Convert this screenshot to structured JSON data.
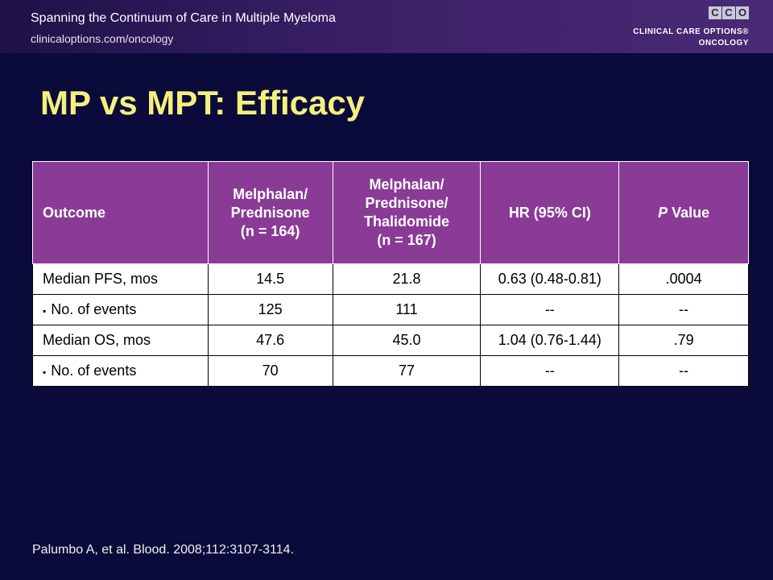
{
  "header": {
    "title": "Spanning the Continuum of Care in Multiple Myeloma",
    "url": "clinicaloptions.com/oncology",
    "logo": {
      "boxes": [
        "C",
        "C",
        "O"
      ],
      "line1": "CLINICAL CARE OPTIONS®",
      "line2": "ONCOLOGY"
    }
  },
  "slide": {
    "title": "MP vs MPT: Efficacy"
  },
  "table": {
    "headers": [
      {
        "key": "outcome",
        "lines": [
          "Outcome"
        ]
      },
      {
        "key": "mp",
        "lines": [
          "Melphalan/",
          "Prednisone",
          "(n = 164)"
        ]
      },
      {
        "key": "mpt",
        "lines": [
          "Melphalan/",
          "Prednisone/",
          "Thalidomide",
          "(n = 167)"
        ]
      },
      {
        "key": "hr",
        "lines": [
          "HR (95% CI)"
        ]
      },
      {
        "key": "p",
        "italic": "P",
        "rest": " Value"
      }
    ],
    "rows": [
      {
        "outcome": "Median PFS, mos",
        "sub": false,
        "mp": "14.5",
        "mpt": "21.8",
        "hr": "0.63 (0.48-0.81)",
        "p": ".0004"
      },
      {
        "outcome": "No. of events",
        "sub": true,
        "mp": "125",
        "mpt": "111",
        "hr": "--",
        "p": "--"
      },
      {
        "outcome": "Median OS, mos",
        "sub": false,
        "mp": "47.6",
        "mpt": "45.0",
        "hr": "1.04 (0.76-1.44)",
        "p": ".79"
      },
      {
        "outcome": "No. of events",
        "sub": true,
        "mp": "70",
        "mpt": "77",
        "hr": "--",
        "p": "--"
      }
    ],
    "bullet": "▪"
  },
  "reference": "Palumbo A, et al. Blood. 2008;112:3107-3114."
}
